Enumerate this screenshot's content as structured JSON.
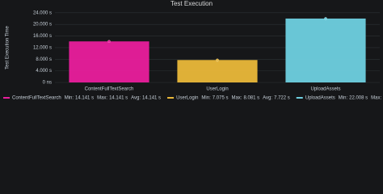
{
  "chart_data": {
    "type": "bar",
    "title": "Test Execution",
    "ylabel": "Test Execution Time",
    "categories": [
      "ContentFullTextSearch",
      "UserLogin",
      "UploadAssets"
    ],
    "colors": [
      "#e91e9c",
      "#eab839",
      "#6ed0e0"
    ],
    "values": [
      14.141,
      7.722,
      22.008
    ],
    "value_labels": [
      "14.141 s",
      "7.722 s",
      "22.008 s"
    ],
    "min": {
      "values": [
        14.141,
        7.075,
        22.008
      ],
      "value_labels": [
        "14.141 s",
        "7.075 s",
        "22.008 s"
      ]
    },
    "max": {
      "values": [
        14.141,
        8.081,
        22.008
      ],
      "value_labels": [
        "14.141 s",
        "8.081 s",
        "22.008 s"
      ]
    },
    "legend_stats": [
      "Min:",
      "Max:",
      "Avg:"
    ],
    "ylim": [
      0,
      24.5
    ],
    "yticks": [
      {
        "value": 0,
        "label": "0 ns"
      },
      {
        "value": 4,
        "label": "4.000 s"
      },
      {
        "value": 8,
        "label": "8.000 s"
      },
      {
        "value": 12,
        "label": "12.000 s"
      },
      {
        "value": 16,
        "label": "16.000 s"
      },
      {
        "value": 20,
        "label": "20.000 s"
      },
      {
        "value": 24,
        "label": "24.000 s"
      }
    ],
    "grid": true
  }
}
